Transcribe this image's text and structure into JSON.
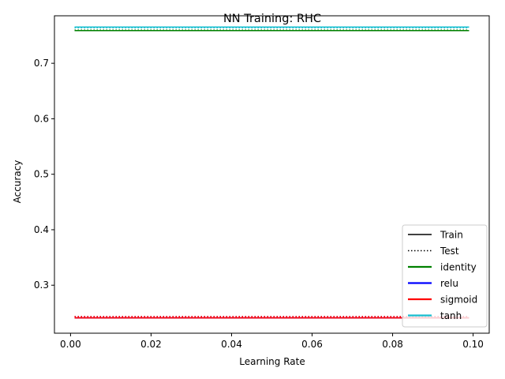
{
  "chart_data": {
    "type": "line",
    "title": "NN Training: RHC",
    "xlabel": "Learning Rate",
    "ylabel": "Accuracy",
    "xlim": [
      -0.004,
      0.104
    ],
    "ylim": [
      0.2135,
      0.7856
    ],
    "x_ticks": [
      0.0,
      0.02,
      0.04,
      0.06,
      0.08,
      0.1
    ],
    "x_tick_labels": [
      "0.00",
      "0.02",
      "0.04",
      "0.06",
      "0.08",
      "0.10"
    ],
    "y_ticks": [
      0.3,
      0.4,
      0.5,
      0.6,
      0.7
    ],
    "y_tick_labels": [
      "0.3",
      "0.4",
      "0.5",
      "0.6",
      "0.7"
    ],
    "grid": false,
    "legend_position": "lower-right",
    "legend": [
      {
        "label": "Train",
        "color": "#000000",
        "style": "solid"
      },
      {
        "label": "Test",
        "color": "#000000",
        "style": "dotted"
      },
      {
        "label": "identity",
        "color": "#008000",
        "style": "solid"
      },
      {
        "label": "relu",
        "color": "#0000ff",
        "style": "solid"
      },
      {
        "label": "sigmoid",
        "color": "#ff0000",
        "style": "solid"
      },
      {
        "label": "tanh",
        "color": "#17becf",
        "style": "solid"
      }
    ],
    "x": [
      0.001,
      0.099
    ],
    "series": [
      {
        "name": "identity",
        "split": "Train",
        "color": "#008000",
        "style": "solid",
        "values": [
          0.7589,
          0.7589
        ]
      },
      {
        "name": "identity",
        "split": "Test",
        "color": "#008000",
        "style": "dotted",
        "values": [
          0.7597,
          0.7597
        ]
      },
      {
        "name": "relu",
        "split": "Train",
        "color": "#0000ff",
        "style": "solid",
        "values": [
          0.2411,
          0.2411
        ]
      },
      {
        "name": "relu",
        "split": "Test",
        "color": "#0000ff",
        "style": "dotted",
        "values": [
          0.2436,
          0.2436
        ]
      },
      {
        "name": "sigmoid",
        "split": "Train",
        "color": "#ff0000",
        "style": "solid",
        "values": [
          0.2411,
          0.2411
        ]
      },
      {
        "name": "sigmoid",
        "split": "Test",
        "color": "#ff0000",
        "style": "dotted",
        "values": [
          0.2436,
          0.2436
        ]
      },
      {
        "name": "tanh",
        "split": "Train",
        "color": "#17becf",
        "style": "solid",
        "values": [
          0.7652,
          0.7652
        ]
      },
      {
        "name": "tanh",
        "split": "Test",
        "color": "#17becf",
        "style": "dotted",
        "values": [
          0.764,
          0.764
        ]
      }
    ]
  }
}
